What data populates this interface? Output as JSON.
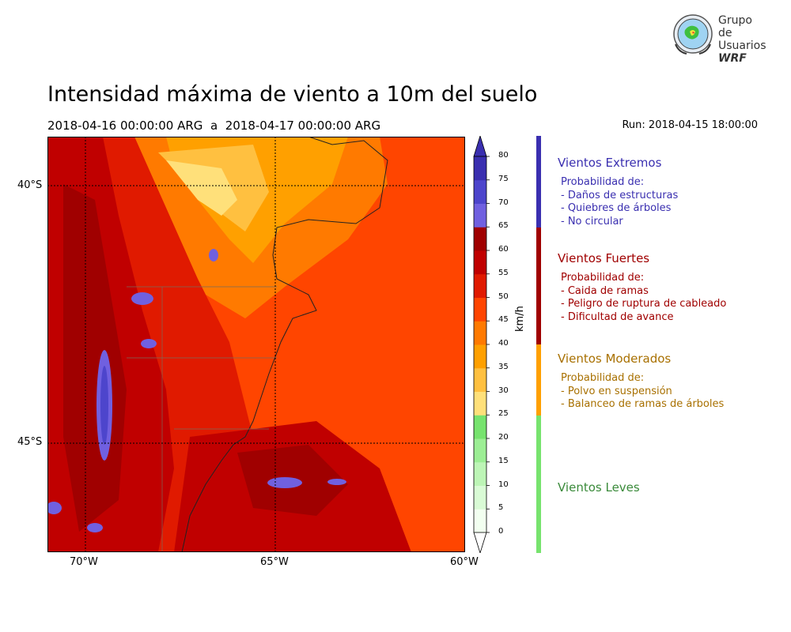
{
  "title": "Intensidad máxima de viento a 10m del suelo",
  "period": {
    "start": "2018-04-16 00:00:00 ARG",
    "separator": "a",
    "end": "2018-04-17 00:00:00 ARG"
  },
  "run": "Run: 2018-04-15 18:00:00",
  "logo": {
    "line1": "Grupo de",
    "line2": "Usuarios",
    "line3": "WRF"
  },
  "map": {
    "lat_labels": [
      "40°S",
      "45°S"
    ],
    "lon_labels": [
      "70°W",
      "65°W",
      "60°W"
    ],
    "extent": {
      "lon_min": -71,
      "lon_max": -60,
      "lat_min": -47,
      "lat_max": -39
    },
    "gridlines": {
      "lat": [
        -40,
        -45
      ],
      "lon": [
        -70,
        -65
      ]
    }
  },
  "colorbar": {
    "unit": "km/h",
    "ticks": [
      "0",
      "5",
      "10",
      "15",
      "20",
      "25",
      "30",
      "35",
      "40",
      "45",
      "50",
      "55",
      "60",
      "65",
      "70",
      "75",
      "80"
    ],
    "colors": [
      "#f2fff0",
      "#d9fbd5",
      "#bdf5b6",
      "#9cee94",
      "#77e36e",
      "#ffe07a",
      "#ffc040",
      "#ffa000",
      "#ff7a00",
      "#ff4500",
      "#e01a00",
      "#c00000",
      "#a00000",
      "#7060e0",
      "#4d45cc",
      "#3a2fb0"
    ]
  },
  "categories": [
    {
      "name": "Vientos Extremos",
      "color": "#3a2fb0",
      "lines": [
        "Probabilidad de:",
        "- Daños de estructuras",
        "- Quiebres de árboles",
        "- No circular"
      ]
    },
    {
      "name": "Vientos Fuertes",
      "color": "#a00000",
      "lines": [
        "Probabilidad de:",
        "- Caida de ramas",
        "- Peligro de ruptura de cableado",
        "- Dificultad de avance"
      ]
    },
    {
      "name": "Vientos Moderados",
      "color": "#a87000",
      "lines": [
        "Probabilidad de:",
        "- Polvo en suspensión",
        "- Balanceo de ramas de árboles"
      ]
    },
    {
      "name": "Vientos Leves",
      "color": "#3a8a3a",
      "lines": []
    }
  ]
}
